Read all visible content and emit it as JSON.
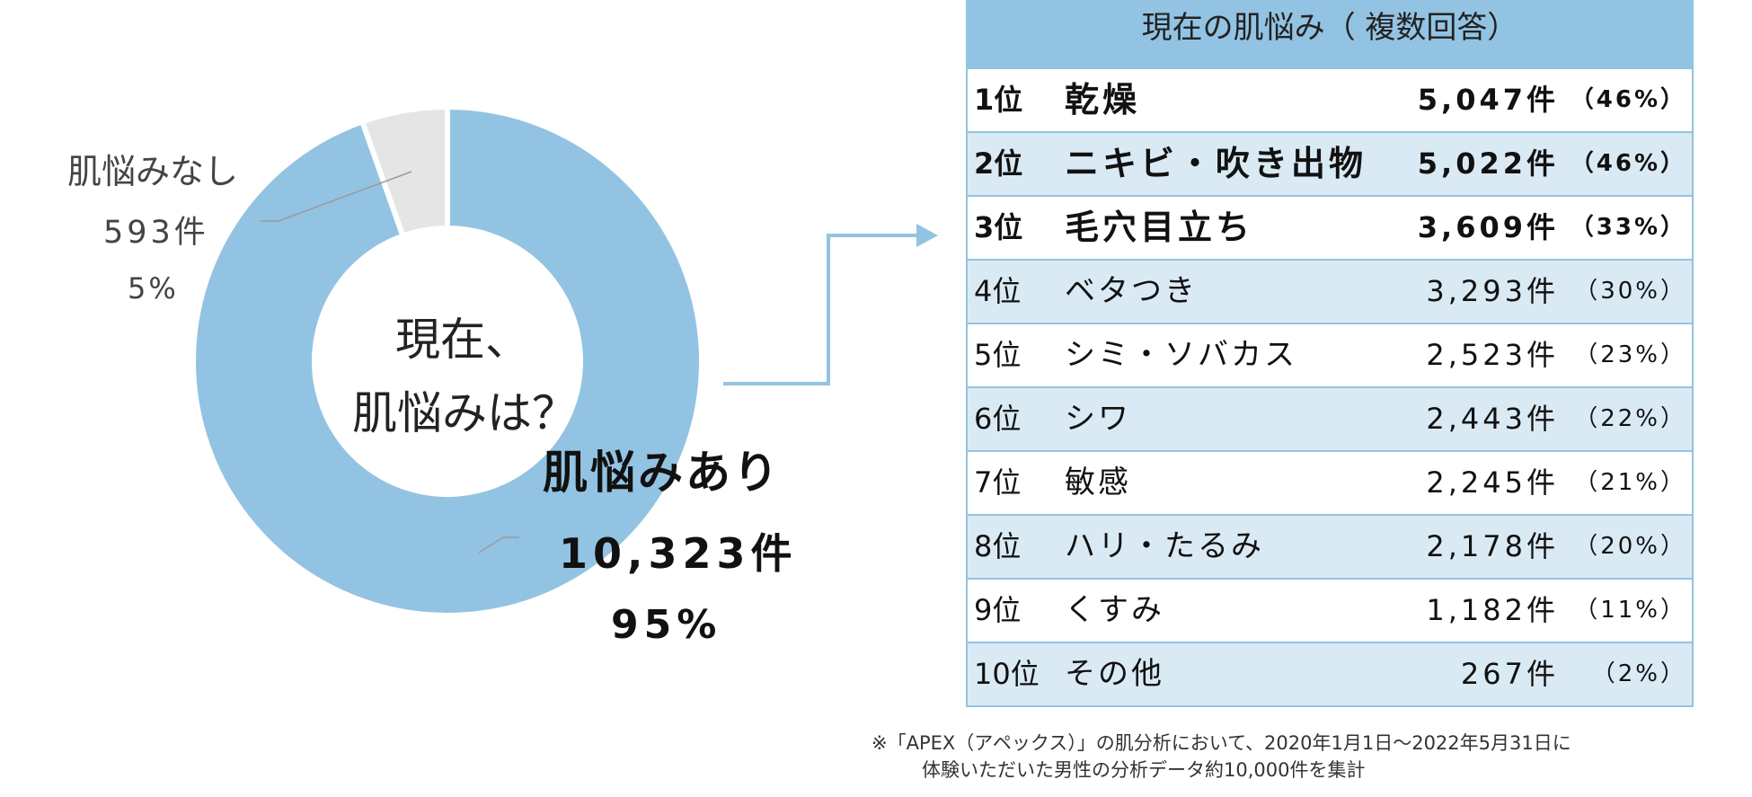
{
  "colors": {
    "accent": "#93c3e2",
    "accent_light": "#daeaf5",
    "no_slice": "#e5e5e5"
  },
  "chart_data": {
    "type": "pie",
    "series": [
      {
        "name": "肌悩みあり",
        "count": "10,323件",
        "pct": "95%",
        "value": 10323,
        "color": "#93c3e2"
      },
      {
        "name": "肌悩みなし",
        "count": "593件",
        "pct": "5%",
        "value": 593,
        "color": "#e5e5e5"
      }
    ],
    "center_line1": "現在、",
    "center_line2": "肌悩みは？"
  },
  "table": {
    "title": "現在の肌悩み（ 複数回答）",
    "rows": [
      {
        "rank": "1位",
        "name": "乾燥",
        "count": "5,047件",
        "pct": "（46%）",
        "bold": true
      },
      {
        "rank": "2位",
        "name": "ニキビ・吹き出物",
        "count": "5,022件",
        "pct": "（46%）",
        "bold": true
      },
      {
        "rank": "3位",
        "name": "毛穴目立ち",
        "count": "3,609件",
        "pct": "（33%）",
        "bold": true
      },
      {
        "rank": "4位",
        "name": "ベタつき",
        "count": "3,293件",
        "pct": "（30%）",
        "bold": false
      },
      {
        "rank": "5位",
        "name": "シミ・ソバカス",
        "count": "2,523件",
        "pct": "（23%）",
        "bold": false
      },
      {
        "rank": "6位",
        "name": "シワ",
        "count": "2,443件",
        "pct": "（22%）",
        "bold": false
      },
      {
        "rank": "7位",
        "name": "敏感",
        "count": "2,245件",
        "pct": "（21%）",
        "bold": false
      },
      {
        "rank": "8位",
        "name": "ハリ・たるみ",
        "count": "2,178件",
        "pct": "（20%）",
        "bold": false
      },
      {
        "rank": "9位",
        "name": "くすみ",
        "count": "1,182件",
        "pct": "（11%）",
        "bold": false
      },
      {
        "rank": "10位",
        "name": "その他",
        "count": "267件",
        "pct": "（2%）",
        "bold": false
      }
    ]
  },
  "footnote": {
    "line1": "※「APEX（アペックス）」の肌分析において、2020年1月1日～2022年5月31日に",
    "line2": "体験いただいた男性の分析データ約10,000件を集計"
  }
}
